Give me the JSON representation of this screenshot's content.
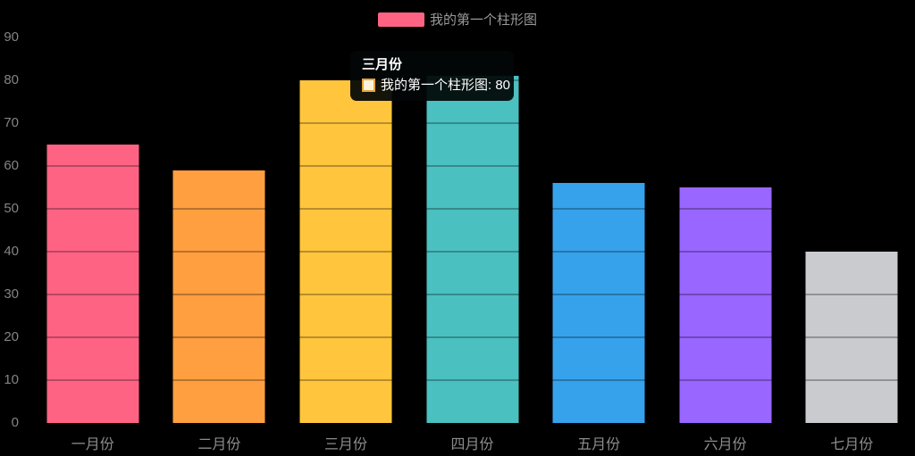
{
  "app": {
    "background_color": "#000000",
    "axis_text_color": "#8c8c8c"
  },
  "legend": {
    "label": "我的第一个柱形图",
    "swatch_color": "#FF6384",
    "text_color": "#999999",
    "position": "top-center"
  },
  "tooltip": {
    "title": "三月份",
    "series_text": "我的第一个柱形图: 80",
    "marker_fill": "#FDF3DC",
    "marker_border": "#E8A33B",
    "background": "rgba(0,0,0,0.93)"
  },
  "chart_data": {
    "type": "bar",
    "title": "",
    "xlabel": "",
    "ylabel": "",
    "categories": [
      "一月份",
      "二月份",
      "三月份",
      "四月份",
      "五月份",
      "六月份",
      "七月份"
    ],
    "series": [
      {
        "name": "我的第一个柱形图",
        "values": [
          65,
          59,
          80,
          81,
          56,
          55,
          40
        ]
      }
    ],
    "bar_colors": [
      "#FF6384",
      "#FF9F40",
      "#FFC53D",
      "#4BC0C0",
      "#36A2EB",
      "#9966FF",
      "#C9CBCF"
    ],
    "ylim": [
      0,
      90
    ],
    "yticks": [
      0,
      10,
      20,
      30,
      40,
      50,
      60,
      70,
      80,
      90
    ],
    "legend_position": "top",
    "grid": "horizontal gridlines, visible as dark lines over bars only",
    "highlighted_category": "三月份",
    "highlighted_value": 80
  }
}
